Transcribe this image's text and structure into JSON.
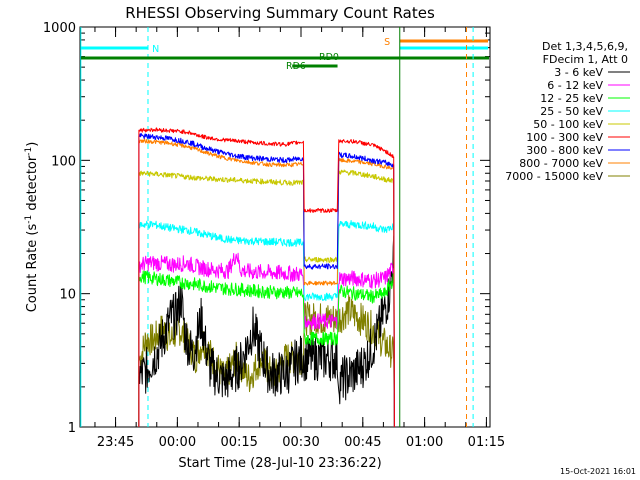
{
  "chart_data": {
    "type": "line",
    "title": "RHESSI Observing Summary Count Rates",
    "xlabel": "Start Time (28-Jul-10 23:36:22)",
    "ylabel": "Count Rate (s",
    "ylabel_sup": "-1",
    "ylabel_tail": " detector",
    "ylabel_sup2": "-1",
    "ylabel_end": ")",
    "y_scale": "log",
    "ylim": [
      1,
      1000
    ],
    "xlim_minutes": [
      0,
      99.5
    ],
    "x_ticks": [
      {
        "label": "23:45",
        "min": 8.63
      },
      {
        "label": "00:00",
        "min": 23.63
      },
      {
        "label": "00:15",
        "min": 38.63
      },
      {
        "label": "00:30",
        "min": 53.63
      },
      {
        "label": "00:45",
        "min": 68.63
      },
      {
        "label": "01:00",
        "min": 83.63
      },
      {
        "label": "01:15",
        "min": 98.63
      }
    ],
    "y_ticks": [
      {
        "label": "1",
        "value": 1
      },
      {
        "label": "10",
        "value": 10
      },
      {
        "label": "100",
        "value": 100
      },
      {
        "label": "1000",
        "value": 1000
      }
    ],
    "legend_placement": "right",
    "legend_header": [
      "Det 1,3,4,5,6,9,",
      "FDecim 1, Att 0"
    ],
    "footer": "15-Oct-2021 16:01",
    "annotations": {
      "night": "N",
      "saa": "S",
      "rd0": "RD0",
      "rd6": "RD6"
    },
    "series": [
      {
        "name": "3 - 6 keV",
        "color": "#000000",
        "points": [
          [
            14.5,
            2.4
          ],
          [
            16,
            2.6
          ],
          [
            17.5,
            3.2
          ],
          [
            19,
            3.8
          ],
          [
            20.5,
            5
          ],
          [
            22,
            6.5
          ],
          [
            23.5,
            7
          ],
          [
            24.5,
            9.5
          ],
          [
            25.5,
            5
          ],
          [
            26.5,
            4
          ],
          [
            27.5,
            3.5
          ],
          [
            28.5,
            5
          ],
          [
            29.5,
            6.5
          ],
          [
            30.5,
            4
          ],
          [
            31.5,
            2.8
          ],
          [
            33,
            2.5
          ],
          [
            35,
            2.2
          ],
          [
            37,
            2.5
          ],
          [
            39,
            3
          ],
          [
            40.5,
            4
          ],
          [
            42,
            5.5
          ],
          [
            43.5,
            4
          ],
          [
            45,
            3
          ],
          [
            46,
            2.5
          ],
          [
            48,
            2.5
          ],
          [
            50,
            2.5
          ],
          [
            52,
            3
          ],
          [
            53.5,
            3.3
          ],
          [
            55,
            3.5
          ]
        ]
      },
      {
        "name": "6 - 12 keV",
        "color": "#ff00ff",
        "points": [
          [
            14.5,
            16.5
          ],
          [
            17,
            17
          ],
          [
            20,
            16.8
          ],
          [
            23,
            16.5
          ],
          [
            26,
            17
          ],
          [
            28,
            16
          ],
          [
            30,
            15.5
          ],
          [
            33,
            15
          ],
          [
            36,
            14.8
          ],
          [
            38,
            20
          ],
          [
            39,
            15
          ],
          [
            42,
            14.5
          ],
          [
            45,
            14.5
          ],
          [
            48,
            14.3
          ],
          [
            50,
            14.2
          ],
          [
            53,
            14
          ],
          [
            54.3,
            14
          ],
          [
            55,
            14
          ]
        ]
      },
      {
        "name": "12 - 25 keV",
        "color": "#00ff00",
        "points": [
          [
            14.5,
            13.5
          ],
          [
            18,
            13
          ],
          [
            22,
            12.5
          ],
          [
            26,
            12
          ],
          [
            30,
            11.5
          ],
          [
            34,
            11
          ],
          [
            38,
            10.8
          ],
          [
            42,
            10.5
          ],
          [
            46,
            10.3
          ],
          [
            50,
            10.2
          ],
          [
            54.3,
            10
          ]
        ]
      },
      {
        "name": "25 - 50 keV",
        "color": "#00ffff",
        "points": [
          [
            14.5,
            33
          ],
          [
            18,
            33
          ],
          [
            22,
            31
          ],
          [
            26,
            30
          ],
          [
            30,
            28
          ],
          [
            34,
            26
          ],
          [
            38,
            25
          ],
          [
            42,
            24.8
          ],
          [
            46,
            24.5
          ],
          [
            50,
            24.3
          ],
          [
            54.3,
            24
          ]
        ]
      },
      {
        "name": "50 - 100 keV",
        "color": "#c8c800",
        "points": [
          [
            14.5,
            80
          ],
          [
            18,
            79
          ],
          [
            22,
            77
          ],
          [
            26,
            75
          ],
          [
            30,
            73
          ],
          [
            34,
            72
          ],
          [
            38,
            71
          ],
          [
            42,
            70
          ],
          [
            46,
            69
          ],
          [
            50,
            68
          ],
          [
            54.3,
            68
          ]
        ]
      },
      {
        "name": "100 - 300 keV",
        "color": "#ff0000",
        "points": [
          [
            14.5,
            168
          ],
          [
            18,
            170
          ],
          [
            22,
            167
          ],
          [
            26,
            163
          ],
          [
            30,
            150
          ],
          [
            34,
            143
          ],
          [
            38,
            140
          ],
          [
            42,
            136
          ],
          [
            46,
            133
          ],
          [
            50,
            132
          ],
          [
            54.3,
            138
          ]
        ]
      },
      {
        "name": "300 - 800 keV",
        "color": "#0000ff",
        "points": [
          [
            14.5,
            152
          ],
          [
            18,
            150
          ],
          [
            22,
            145
          ],
          [
            26,
            138
          ],
          [
            30,
            125
          ],
          [
            34,
            115
          ],
          [
            38,
            108
          ],
          [
            42,
            104
          ],
          [
            46,
            102
          ],
          [
            50,
            100
          ],
          [
            54.3,
            104
          ]
        ]
      },
      {
        "name": "800 - 7000 keV",
        "color": "#ff8000",
        "points": [
          [
            14.5,
            140
          ],
          [
            18,
            138
          ],
          [
            22,
            134
          ],
          [
            26,
            127
          ],
          [
            30,
            116
          ],
          [
            34,
            106
          ],
          [
            38,
            100
          ],
          [
            42,
            96
          ],
          [
            46,
            93
          ],
          [
            50,
            92
          ],
          [
            54.3,
            94
          ]
        ]
      },
      {
        "name": "7000 - 15000 keV",
        "color": "#808000",
        "points": [
          [
            14.5,
            3.2
          ],
          [
            16,
            4.5
          ],
          [
            18,
            4.5
          ],
          [
            20,
            5.5
          ],
          [
            22,
            4.5
          ],
          [
            24,
            5.5
          ],
          [
            26,
            4.5
          ],
          [
            28,
            3.3
          ],
          [
            30,
            4.5
          ],
          [
            32,
            3.3
          ],
          [
            35,
            2.3
          ],
          [
            38,
            3.3
          ],
          [
            41,
            2.3
          ],
          [
            44,
            3.3
          ],
          [
            47,
            2.3
          ],
          [
            50,
            3.3
          ],
          [
            53,
            3.3
          ],
          [
            55,
            3.3
          ]
        ]
      }
    ]
  }
}
